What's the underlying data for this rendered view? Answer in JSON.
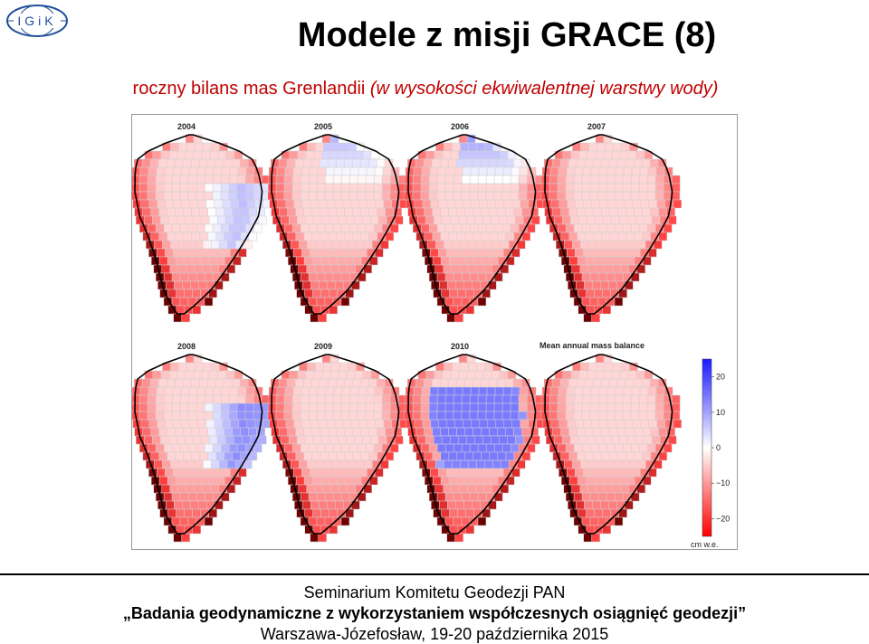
{
  "logo": {
    "text": "IGiK"
  },
  "title": "Modele z misji GRACE (8)",
  "subtitle": {
    "part1": "roczny bilans mas Grenlandii",
    "part2": "(w wysokości ekwiwalentnej warstwy wody)"
  },
  "figure": {
    "maps": [
      {
        "year": "2004",
        "blue_side": "east",
        "blue_strength": 0.6
      },
      {
        "year": "2005",
        "blue_side": "north",
        "blue_strength": 0.4
      },
      {
        "year": "2006",
        "blue_side": "north",
        "blue_strength": 0.5
      },
      {
        "year": "2007",
        "blue_side": "none",
        "blue_strength": 0.0
      },
      {
        "year": "2008",
        "blue_side": "east",
        "blue_strength": 0.9
      },
      {
        "year": "2009",
        "blue_side": "none",
        "blue_strength": 0.0
      },
      {
        "year": "2010",
        "blue_side": "center",
        "blue_strength": 0.7
      },
      {
        "year": "",
        "blue_side": "none",
        "blue_strength": 0.0
      }
    ],
    "legend_title": "Mean annual mass balance",
    "colorbar": {
      "ticks": [
        "20",
        "10",
        "0",
        "−10",
        "−20"
      ],
      "range": [
        -25,
        25
      ],
      "unit": "cm w.e.",
      "colors": {
        "max": "#1a1aff",
        "mid": "#ffffff",
        "min": "#ff0000"
      }
    }
  },
  "footer": {
    "line1": "Seminarium Komitetu Geodezji PAN",
    "line2": "„Badania geodynamiczne z wykorzystaniem współczesnych osiągnięć geodezji”",
    "line3": "Warszawa-Józefosław, 19-20 października 2015"
  }
}
